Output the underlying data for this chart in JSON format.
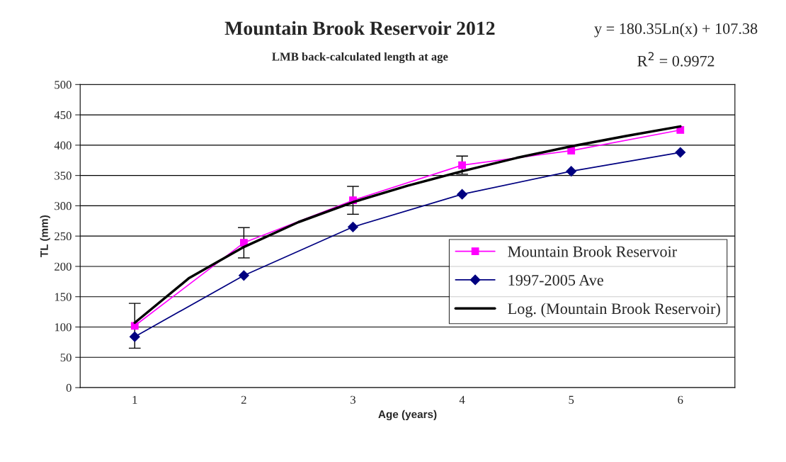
{
  "chart_data": {
    "type": "line",
    "title": "Mountain Brook Reservoir 2012",
    "subtitle": "LMB back-calculated length at age",
    "xlabel": "Age (years)",
    "ylabel": "TL (mm)",
    "annotations": [
      "y = 180.35Ln(x) + 107.38",
      "R$^{2}$ = 0.9972"
    ],
    "x": [
      1,
      2,
      3,
      4,
      5,
      6
    ],
    "xlim": [
      0.5,
      6.5
    ],
    "xticks": [
      1,
      2,
      3,
      4,
      5,
      6
    ],
    "ylim": [
      0,
      500
    ],
    "yticks": [
      0,
      50,
      100,
      150,
      200,
      250,
      300,
      350,
      400,
      450,
      500
    ],
    "grid": "y",
    "legend": "right",
    "series": [
      {
        "name": "Mountain Brook Reservoir",
        "color": "#ff00ff",
        "marker": "square",
        "values": [
          102,
          239,
          309,
          367,
          391,
          425
        ],
        "errors": [
          37,
          25,
          23,
          15,
          null,
          null
        ]
      },
      {
        "name": "1997-2005 Ave",
        "color": "#000080",
        "marker": "diamond",
        "values": [
          84,
          185,
          265,
          319,
          357,
          388
        ]
      },
      {
        "name": "Log. (Mountain Brook Reservoir)",
        "color": "#000000",
        "marker": "none",
        "x": [
          1,
          1.5,
          2,
          2.5,
          3,
          3.5,
          4,
          4.5,
          5,
          5.5,
          6
        ],
        "values": [
          107,
          181,
          232,
          273,
          306,
          333,
          357,
          379,
          398,
          415,
          431
        ]
      }
    ]
  }
}
